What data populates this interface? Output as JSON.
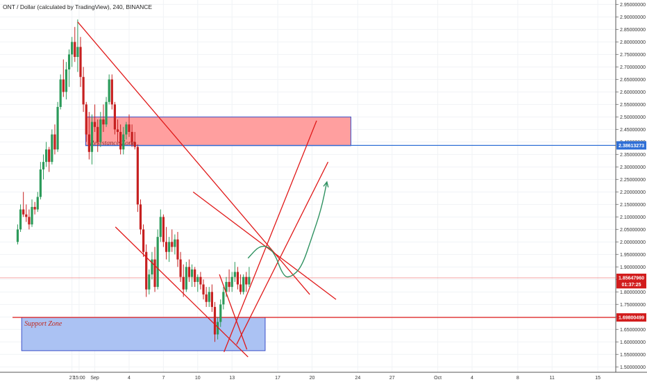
{
  "header": {
    "symbol_line": "ONT / Dollar (calculated by TradingView), 240, BINANCE"
  },
  "chart_data": {
    "type": "candlestick",
    "y_axis": {
      "range": [
        1.48,
        2.96
      ],
      "ticks": [
        "2.95000000",
        "2.90000000",
        "2.85000000",
        "2.80000000",
        "2.75000000",
        "2.70000000",
        "2.65000000",
        "2.60000000",
        "2.55000000",
        "2.50000000",
        "2.45000000",
        "2.40000000",
        "2.35000000",
        "2.30000000",
        "2.25000000",
        "2.20000000",
        "2.15000000",
        "2.10000000",
        "2.05000000",
        "2.00000000",
        "1.95000000",
        "1.90000000",
        "1.85000000",
        "1.80000000",
        "1.75000000",
        "1.70000000",
        "1.65000000",
        "1.60000000",
        "1.55000000",
        "1.50000000"
      ]
    },
    "x_axis": {
      "ticks": [
        {
          "label": "27",
          "day": -5
        },
        {
          "label": "15:00",
          "day": -4.375
        },
        {
          "label": "Sep",
          "day": -3
        },
        {
          "label": "4",
          "day": 0
        },
        {
          "label": "7",
          "day": 3
        },
        {
          "label": "10",
          "day": 6
        },
        {
          "label": "13",
          "day": 9
        },
        {
          "label": "17",
          "day": 13
        },
        {
          "label": "20",
          "day": 16
        },
        {
          "label": "24",
          "day": 20
        },
        {
          "label": "27",
          "day": 23
        },
        {
          "label": "Oct",
          "day": 27
        },
        {
          "label": "4",
          "day": 30
        },
        {
          "label": "8",
          "day": 34
        },
        {
          "label": "11",
          "day": 37
        },
        {
          "label": "15",
          "day": 41
        }
      ]
    },
    "price_labels": [
      {
        "value": 2.38613273,
        "text": "2.38613273",
        "color": "#2f6fd6"
      },
      {
        "value": 1.8564796,
        "text": "1.85647960",
        "color": "#d21c1c"
      },
      {
        "value": 1.8306,
        "text": "01:37:25",
        "color": "#d21c1c"
      },
      {
        "value": 1.69800499,
        "text": "1.69800499",
        "color": "#d21c1c"
      }
    ],
    "zones": [
      {
        "label": "Resistance Zone",
        "top": 2.5,
        "bottom": 2.385,
        "day_start": -3.8,
        "day_end": 19.4,
        "fill": "#ff9a9a",
        "stroke": "#3a4fc8",
        "text_color": "#8a2d2d"
      },
      {
        "label": "Support Zone",
        "top": 1.698,
        "bottom": 1.565,
        "day_start": -9.4,
        "day_end": 11.9,
        "fill": "#a6bff2",
        "stroke": "#3a4fc8",
        "text_color": "#c0281e"
      }
    ],
    "hlines": [
      {
        "value": 2.38613273,
        "color": "#2f6fd6"
      },
      {
        "value": 1.69800499,
        "color": "#e01818"
      },
      {
        "value": 1.8564796,
        "color": "#f08080"
      }
    ],
    "trendlines": [
      {
        "from": [
          -4.5,
          2.88
        ],
        "to": [
          15.8,
          1.79
        ]
      },
      {
        "from": [
          -1.2,
          2.06
        ],
        "to": [
          10.4,
          1.54
        ]
      },
      {
        "from": [
          8.3,
          1.56
        ],
        "to": [
          16.4,
          2.485
        ]
      },
      {
        "from": [
          9.4,
          1.59
        ],
        "to": [
          17.4,
          2.32
        ]
      },
      {
        "from": [
          5.6,
          2.2
        ],
        "to": [
          18.1,
          1.77
        ]
      },
      {
        "from": [
          7.9,
          1.87
        ],
        "to": [
          10.3,
          1.57
        ]
      }
    ],
    "projection": {
      "color": "#2e9160",
      "points": [
        [
          10.4,
          1.935
        ],
        [
          11.5,
          1.99
        ],
        [
          12.6,
          1.97
        ],
        [
          13.5,
          1.86
        ],
        [
          14.2,
          1.86
        ],
        [
          15.1,
          1.9
        ],
        [
          16,
          2.02
        ],
        [
          16.8,
          2.13
        ],
        [
          17.3,
          2.24
        ]
      ]
    },
    "candles": [
      [
        -9.75,
        2.0,
        2.07,
        1.99,
        2.05
      ],
      [
        -9.5,
        2.05,
        2.15,
        2.04,
        2.13
      ],
      [
        -9.25,
        2.13,
        2.2,
        2.1,
        2.11
      ],
      [
        -9.0,
        2.11,
        2.15,
        2.08,
        2.1
      ],
      [
        -8.75,
        2.1,
        2.13,
        2.05,
        2.07
      ],
      [
        -8.5,
        2.07,
        2.17,
        2.06,
        2.14
      ],
      [
        -8.25,
        2.14,
        2.16,
        2.11,
        2.13
      ],
      [
        -8.0,
        2.13,
        2.2,
        2.12,
        2.18
      ],
      [
        -7.75,
        2.18,
        2.32,
        2.17,
        2.29
      ],
      [
        -7.5,
        2.29,
        2.35,
        2.25,
        2.32
      ],
      [
        -7.25,
        2.32,
        2.4,
        2.3,
        2.37
      ],
      [
        -7.0,
        2.37,
        2.38,
        2.28,
        2.32
      ],
      [
        -6.75,
        2.32,
        2.45,
        2.31,
        2.43
      ],
      [
        -6.5,
        2.43,
        2.47,
        2.35,
        2.37
      ],
      [
        -6.25,
        2.37,
        2.56,
        2.36,
        2.54
      ],
      [
        -6.0,
        2.54,
        2.67,
        2.53,
        2.65
      ],
      [
        -5.75,
        2.65,
        2.73,
        2.58,
        2.6
      ],
      [
        -5.5,
        2.6,
        2.72,
        2.57,
        2.69
      ],
      [
        -5.25,
        2.69,
        2.77,
        2.62,
        2.75
      ],
      [
        -5.0,
        2.75,
        2.82,
        2.7,
        2.8
      ],
      [
        -4.75,
        2.8,
        2.86,
        2.72,
        2.74
      ],
      [
        -4.5,
        2.74,
        2.89,
        2.68,
        2.78
      ],
      [
        -4.25,
        2.78,
        2.82,
        2.62,
        2.66
      ],
      [
        -4.0,
        2.66,
        2.7,
        2.52,
        2.55
      ],
      [
        -3.75,
        2.55,
        2.56,
        2.4,
        2.43
      ],
      [
        -3.5,
        2.43,
        2.52,
        2.33,
        2.36
      ],
      [
        -3.25,
        2.36,
        2.51,
        2.31,
        2.48
      ],
      [
        -3.0,
        2.48,
        2.55,
        2.44,
        2.46
      ],
      [
        -2.75,
        2.46,
        2.49,
        2.36,
        2.4
      ],
      [
        -2.5,
        2.4,
        2.52,
        2.38,
        2.49
      ],
      [
        -2.25,
        2.49,
        2.55,
        2.44,
        2.47
      ],
      [
        -2.0,
        2.47,
        2.58,
        2.46,
        2.56
      ],
      [
        -1.75,
        2.56,
        2.67,
        2.55,
        2.65
      ],
      [
        -1.5,
        2.65,
        2.67,
        2.53,
        2.55
      ],
      [
        -1.25,
        2.55,
        2.56,
        2.43,
        2.45
      ],
      [
        -1.0,
        2.45,
        2.49,
        2.4,
        2.44
      ],
      [
        -0.75,
        2.44,
        2.47,
        2.35,
        2.37
      ],
      [
        -0.5,
        2.37,
        2.46,
        2.35,
        2.43
      ],
      [
        -0.25,
        2.43,
        2.48,
        2.41,
        2.47
      ],
      [
        0.0,
        2.47,
        2.51,
        2.42,
        2.44
      ],
      [
        0.25,
        2.44,
        2.47,
        2.38,
        2.4
      ],
      [
        0.5,
        2.4,
        2.44,
        2.37,
        2.38
      ],
      [
        0.75,
        2.38,
        2.39,
        2.12,
        2.15
      ],
      [
        1.0,
        2.15,
        2.17,
        2.03,
        2.05
      ],
      [
        1.25,
        2.05,
        2.07,
        1.94,
        1.96
      ],
      [
        1.5,
        1.96,
        1.99,
        1.78,
        1.81
      ],
      [
        1.75,
        1.81,
        1.89,
        1.79,
        1.87
      ],
      [
        2.0,
        1.87,
        1.96,
        1.85,
        1.93
      ],
      [
        2.25,
        1.93,
        1.98,
        1.8,
        1.82
      ],
      [
        2.5,
        1.82,
        2.05,
        1.81,
        2.02
      ],
      [
        2.75,
        2.02,
        2.13,
        2.0,
        2.1
      ],
      [
        3.0,
        2.1,
        2.11,
        1.98,
        2.0
      ],
      [
        3.25,
        2.0,
        2.06,
        1.93,
        1.96
      ],
      [
        3.5,
        1.96,
        2.02,
        1.92,
        2.0
      ],
      [
        3.75,
        2.0,
        2.05,
        1.96,
        1.98
      ],
      [
        4.0,
        1.98,
        2.03,
        1.95,
        2.01
      ],
      [
        4.25,
        2.01,
        2.04,
        1.9,
        1.93
      ],
      [
        4.5,
        1.93,
        1.96,
        1.84,
        1.86
      ],
      [
        4.75,
        1.86,
        1.91,
        1.78,
        1.81
      ],
      [
        5.0,
        1.81,
        1.92,
        1.8,
        1.9
      ],
      [
        5.25,
        1.9,
        1.93,
        1.84,
        1.86
      ],
      [
        5.5,
        1.86,
        1.91,
        1.82,
        1.89
      ],
      [
        5.75,
        1.89,
        1.9,
        1.82,
        1.84
      ],
      [
        6.0,
        1.84,
        1.87,
        1.8,
        1.86
      ],
      [
        6.25,
        1.86,
        1.88,
        1.81,
        1.83
      ],
      [
        6.5,
        1.83,
        1.85,
        1.77,
        1.79
      ],
      [
        6.75,
        1.79,
        1.82,
        1.74,
        1.76
      ],
      [
        7.0,
        1.76,
        1.82,
        1.74,
        1.8
      ],
      [
        7.25,
        1.8,
        1.83,
        1.72,
        1.74
      ],
      [
        7.5,
        1.74,
        1.76,
        1.6,
        1.63
      ],
      [
        7.75,
        1.63,
        1.7,
        1.61,
        1.68
      ],
      [
        8.0,
        1.68,
        1.77,
        1.66,
        1.75
      ],
      [
        8.25,
        1.75,
        1.82,
        1.73,
        1.8
      ],
      [
        8.5,
        1.8,
        1.86,
        1.78,
        1.84
      ],
      [
        8.75,
        1.84,
        1.89,
        1.8,
        1.82
      ],
      [
        9.0,
        1.82,
        1.88,
        1.8,
        1.86
      ],
      [
        9.25,
        1.86,
        1.92,
        1.84,
        1.88
      ],
      [
        9.5,
        1.88,
        1.9,
        1.81,
        1.83
      ],
      [
        9.75,
        1.83,
        1.87,
        1.79,
        1.8
      ],
      [
        10.0,
        1.8,
        1.87,
        1.79,
        1.86
      ],
      [
        10.25,
        1.86,
        1.88,
        1.8,
        1.83
      ],
      [
        10.5,
        1.83,
        1.9,
        1.82,
        1.86
      ]
    ]
  }
}
